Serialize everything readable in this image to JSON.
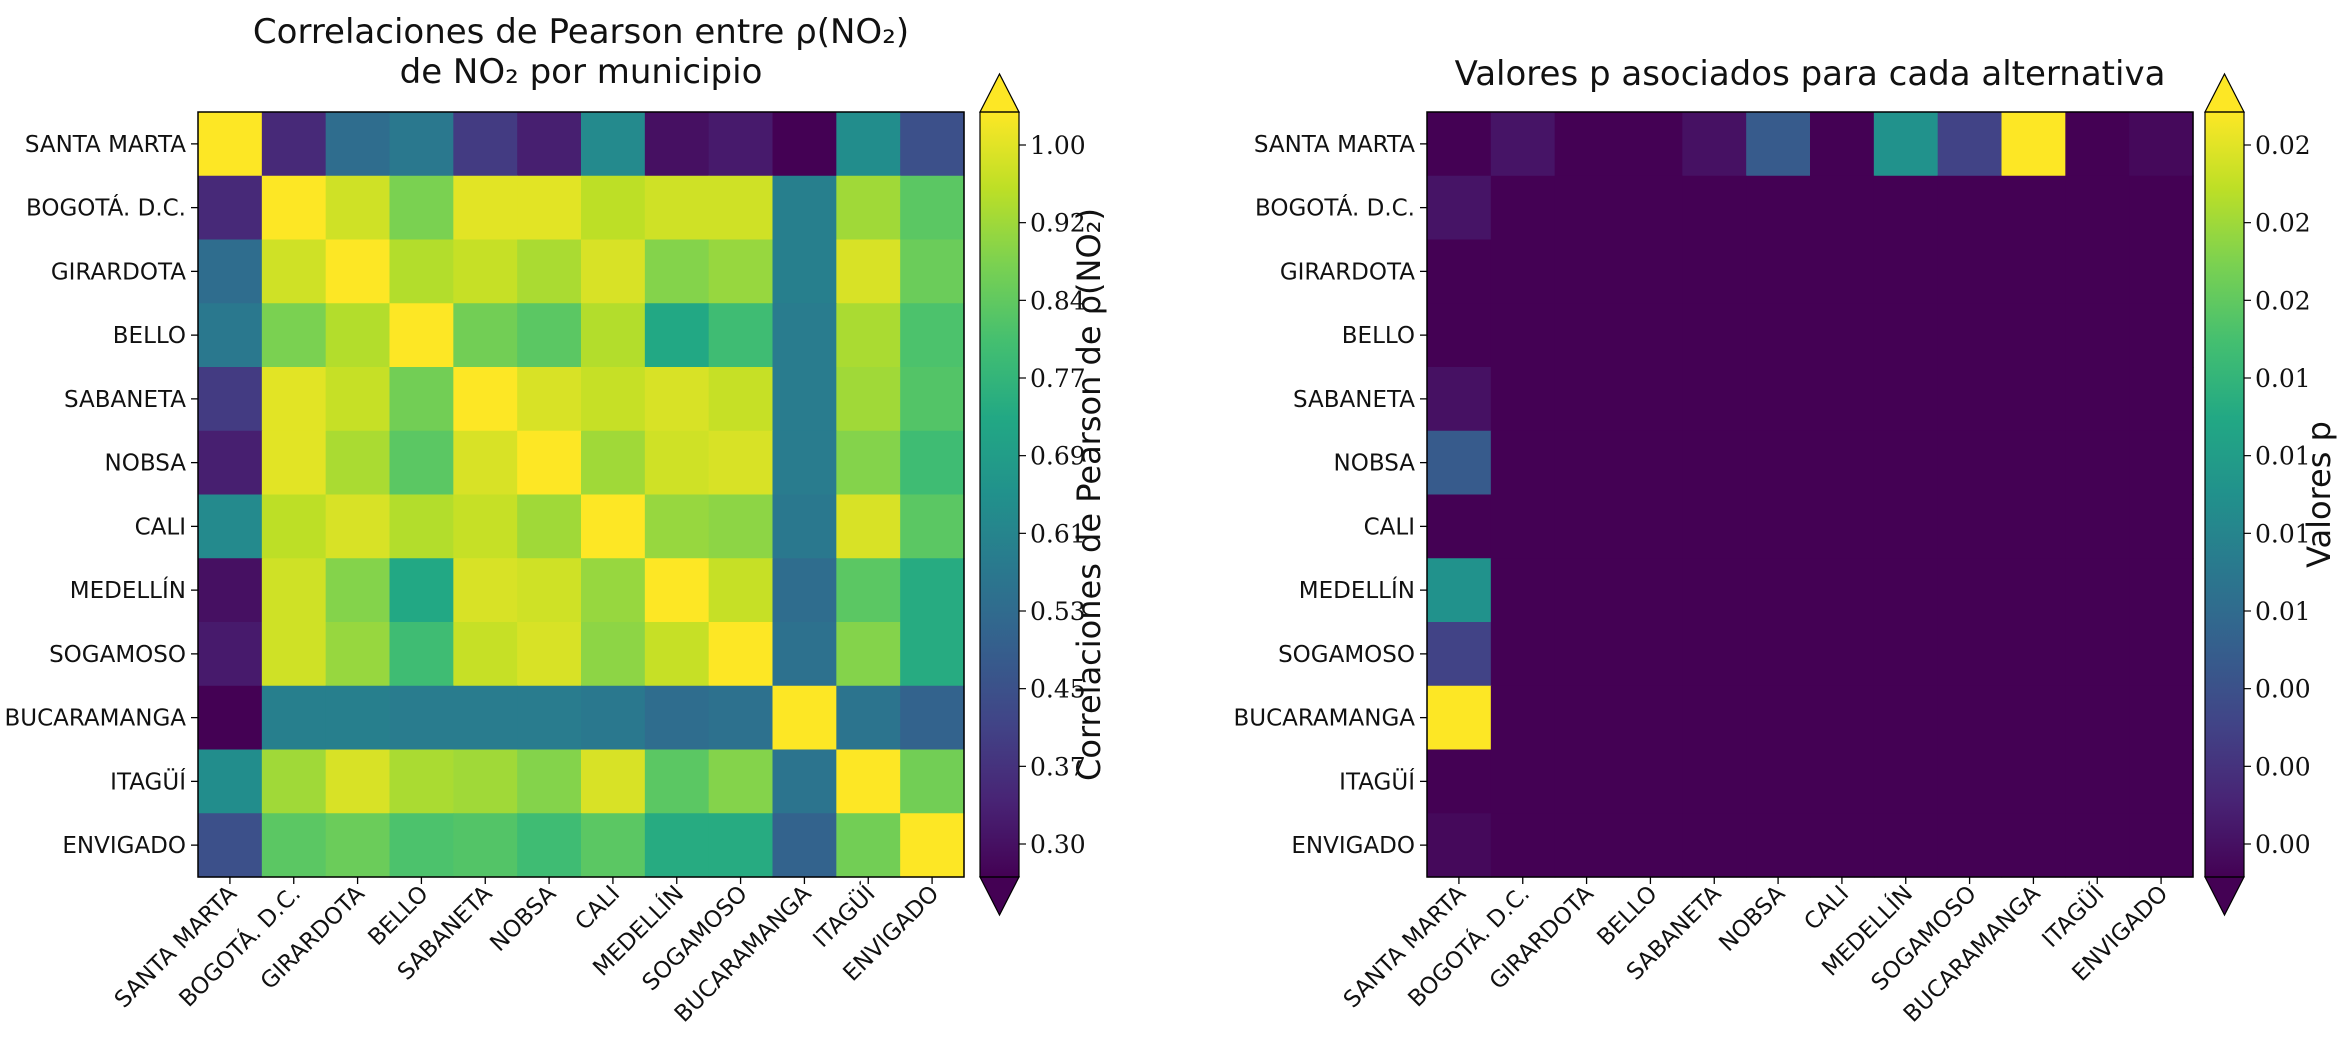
{
  "chart_data": [
    {
      "type": "heatmap",
      "title_lines": [
        "Correlaciones de Pearson entre ρ(NO₂)",
        "de NO₂ por municipio"
      ],
      "rows": [
        "SANTA MARTA",
        "BOGOTÁ. D.C.",
        "GIRARDOTA",
        "BELLO",
        "SABANETA",
        "NOBSA",
        "CALI",
        "MEDELLÍN",
        "SOGAMOSO",
        "BUCARAMANGA",
        "ITAGÜÍ",
        "ENVIGADO"
      ],
      "cols": [
        "SANTA MARTA",
        "BOGOTÁ. D.C.",
        "GIRARDOTA",
        "BELLO",
        "SABANETA",
        "NOBSA",
        "CALI",
        "MEDELLÍN",
        "SOGAMOSO",
        "BUCARAMANGA",
        "ITAGÜÍ",
        "ENVIGADO"
      ],
      "values": [
        [
          1.0,
          0.38,
          0.55,
          0.58,
          0.42,
          0.36,
          0.63,
          0.33,
          0.35,
          0.3,
          0.64,
          0.47
        ],
        [
          0.38,
          1.0,
          0.95,
          0.86,
          0.97,
          0.97,
          0.93,
          0.95,
          0.95,
          0.6,
          0.9,
          0.82
        ],
        [
          0.55,
          0.95,
          1.0,
          0.92,
          0.94,
          0.91,
          0.96,
          0.87,
          0.89,
          0.6,
          0.96,
          0.84
        ],
        [
          0.58,
          0.86,
          0.92,
          1.0,
          0.85,
          0.82,
          0.92,
          0.72,
          0.78,
          0.59,
          0.91,
          0.8
        ],
        [
          0.42,
          0.97,
          0.94,
          0.85,
          1.0,
          0.96,
          0.94,
          0.96,
          0.94,
          0.59,
          0.9,
          0.81
        ],
        [
          0.36,
          0.97,
          0.91,
          0.82,
          0.96,
          1.0,
          0.9,
          0.95,
          0.96,
          0.59,
          0.87,
          0.78
        ],
        [
          0.63,
          0.93,
          0.96,
          0.92,
          0.94,
          0.9,
          1.0,
          0.89,
          0.88,
          0.58,
          0.96,
          0.82
        ],
        [
          0.33,
          0.95,
          0.87,
          0.72,
          0.96,
          0.95,
          0.89,
          1.0,
          0.94,
          0.55,
          0.82,
          0.73
        ],
        [
          0.35,
          0.95,
          0.89,
          0.78,
          0.94,
          0.96,
          0.88,
          0.94,
          1.0,
          0.56,
          0.87,
          0.73
        ],
        [
          0.3,
          0.6,
          0.6,
          0.59,
          0.59,
          0.59,
          0.58,
          0.55,
          0.56,
          1.0,
          0.57,
          0.52
        ],
        [
          0.64,
          0.9,
          0.96,
          0.91,
          0.9,
          0.87,
          0.96,
          0.82,
          0.87,
          0.57,
          1.0,
          0.85
        ],
        [
          0.47,
          0.82,
          0.84,
          0.8,
          0.81,
          0.78,
          0.82,
          0.73,
          0.73,
          0.52,
          0.85,
          1.0
        ]
      ],
      "vmin": 0.3,
      "vmax": 1.0,
      "colormap": "viridis",
      "colorbar_label": "Correlaciones de Pearson de ρ(NO₂)",
      "colorbar_ticks": [
        "1.00",
        "0.92",
        "0.84",
        "0.77",
        "0.69",
        "0.61",
        "0.53",
        "0.45",
        "0.37",
        "0.30"
      ],
      "colorbar_extend": "both"
    },
    {
      "type": "heatmap",
      "title_lines": [
        "Valores p asociados para cada alternativa"
      ],
      "rows": [
        "SANTA MARTA",
        "BOGOTÁ. D.C.",
        "GIRARDOTA",
        "BELLO",
        "SABANETA",
        "NOBSA",
        "CALI",
        "MEDELLÍN",
        "SOGAMOSO",
        "BUCARAMANGA",
        "ITAGÜÍ",
        "ENVIGADO"
      ],
      "cols": [
        "SANTA MARTA",
        "BOGOTÁ. D.C.",
        "GIRARDOTA",
        "BELLO",
        "SABANETA",
        "NOBSA",
        "CALI",
        "MEDELLÍN",
        "SOGAMOSO",
        "BUCARAMANGA",
        "ITAGÜÍ",
        "ENVIGADO"
      ],
      "values": [
        [
          0.0,
          0.0012,
          0.0,
          0.0,
          0.001,
          0.0064,
          0.0,
          0.0113,
          0.0044,
          0.0225,
          0.0,
          0.0005
        ],
        [
          0.0012,
          0,
          0,
          0,
          0,
          0,
          0,
          0,
          0,
          0,
          0,
          0
        ],
        [
          0.0,
          0,
          0,
          0,
          0,
          0,
          0,
          0,
          0,
          0,
          0,
          0
        ],
        [
          0.0,
          0,
          0,
          0,
          0,
          0,
          0,
          0,
          0,
          0,
          0,
          0
        ],
        [
          0.001,
          0,
          0,
          0,
          0,
          0,
          0,
          0,
          0,
          0,
          0,
          0
        ],
        [
          0.0064,
          0,
          0,
          0,
          0,
          0,
          0,
          0,
          0,
          0,
          0,
          0
        ],
        [
          0.0,
          0,
          0,
          0,
          0,
          0,
          0,
          0,
          0,
          0,
          0,
          0
        ],
        [
          0.0113,
          0,
          0,
          0,
          0,
          0,
          0,
          0,
          0,
          0,
          0,
          0
        ],
        [
          0.0044,
          0,
          0,
          0,
          0,
          0,
          0,
          0,
          0,
          0,
          0,
          0
        ],
        [
          0.0225,
          0,
          0,
          0,
          0,
          0,
          0,
          0,
          0,
          0,
          0,
          0
        ],
        [
          0.0,
          0,
          0,
          0,
          0,
          0,
          0,
          0,
          0,
          0,
          0,
          0
        ],
        [
          0.0005,
          0,
          0,
          0,
          0,
          0,
          0,
          0,
          0,
          0,
          0,
          0
        ]
      ],
      "vmin": 0.0,
      "vmax": 0.0225,
      "colormap": "viridis",
      "colorbar_label": "Valores p",
      "colorbar_ticks": [
        "0.02",
        "0.02",
        "0.02",
        "0.01",
        "0.01",
        "0.01",
        "0.01",
        "0.00",
        "0.00",
        "0.00"
      ],
      "colorbar_extend": "both"
    }
  ]
}
